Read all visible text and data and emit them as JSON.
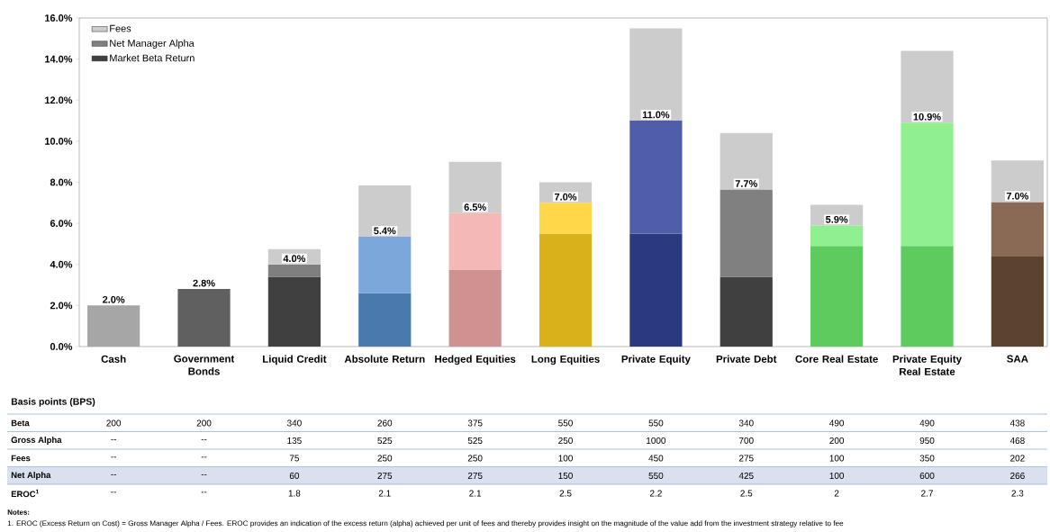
{
  "chart_data": {
    "type": "bar",
    "stacked": true,
    "legend": "top left",
    "categories": [
      "Cash",
      "Government Bonds",
      "Liquid Credit",
      "Absolute Return",
      "Hedged Equities",
      "Long Equities",
      "Private Equity",
      "Private Debt",
      "Core Real Estate",
      "Private Equity Real Estate",
      "SAA"
    ],
    "ylim": [
      0,
      16
    ],
    "yticks": [
      {
        "value": 0,
        "label": "0.0%"
      },
      {
        "value": 2,
        "label": "2.0%"
      },
      {
        "value": 4,
        "label": "4.0%"
      },
      {
        "value": 6,
        "label": "6.0%"
      },
      {
        "value": 8,
        "label": "8.0%"
      },
      {
        "value": 10,
        "label": "10.0%"
      },
      {
        "value": 12,
        "label": "12.0%"
      },
      {
        "value": 14,
        "label": "14.0%"
      },
      {
        "value": 16,
        "label": "16.0%"
      }
    ],
    "series": [
      {
        "name": "Market Beta Return",
        "color": "#404040",
        "colors": [
          "#a6a6a6",
          "#606060",
          "#404040",
          "#4a79ad",
          "#d09290",
          "#d9b11a",
          "#2a3a80",
          "#404040",
          "#5ecb5e",
          "#5ecb5e",
          "#5c4330"
        ],
        "values": [
          2.0,
          2.8,
          3.4,
          2.6,
          3.75,
          5.5,
          5.5,
          3.4,
          4.9,
          4.9,
          4.38
        ]
      },
      {
        "name": "Net Manager Alpha",
        "color": "#808080",
        "colors": [
          "#bfbfbf",
          "#808080",
          "#7f7f7f",
          "#7ba7da",
          "#f4b8b6",
          "#ffd84a",
          "#4f5ea8",
          "#808080",
          "#8ef08e",
          "#8ef08e",
          "#8a6a55"
        ],
        "values": [
          null,
          null,
          0.6,
          2.75,
          2.75,
          1.5,
          5.5,
          4.25,
          1.0,
          6.0,
          2.66
        ]
      },
      {
        "name": "Fees",
        "color": "#cccccc",
        "values": [
          null,
          null,
          0.75,
          2.5,
          2.5,
          1.0,
          4.5,
          2.75,
          1.0,
          3.5,
          2.02
        ]
      }
    ],
    "annotations": [
      "Basis points (BPS)",
      "Beta",
      "200",
      "200",
      "340",
      "260",
      "375",
      "550",
      "550",
      "340",
      "490",
      "490",
      "438",
      "Gross Alpha",
      "--",
      "--",
      "135",
      "525",
      "525",
      "250",
      "1000",
      "700",
      "200",
      "950",
      "468",
      "Fees",
      "--",
      "--",
      "75",
      "250",
      "250",
      "100",
      "450",
      "275",
      "100",
      "350",
      "202",
      "Net Alpha",
      "--",
      "--",
      "60",
      "275",
      "275",
      "150",
      "550",
      "425",
      "100",
      "600",
      "266",
      "EROC$^{1}$",
      "--",
      "--",
      "1.8",
      "2.1",
      "2.1",
      "2.5",
      "2.2",
      "2.5",
      "2",
      "2.7",
      "2.3",
      "Notes:",
      "1.    EROC (Excess Return on Cost) = Gross Manager Alpha / Fees. EROC provides an indication of the excess return (alpha) achieved per unit of fees and thereby provides insight on the magnitude of the value add from the investment strategy relative to fee",
      {
        "text": "2.0%",
        "x": "Cash",
        "y": 2.0
      },
      {
        "text": "2.8%",
        "x": "Government Bonds",
        "y": 2.8
      },
      {
        "text": "4.0%",
        "x": "Liquid Credit",
        "y": 4.0
      },
      {
        "text": "5.4%",
        "x": "Absolute Return",
        "y": 5.35
      },
      {
        "text": "6.5%",
        "x": "Hedged Equities",
        "y": 6.5
      },
      {
        "text": "7.0%",
        "x": "Long Equities",
        "y": 7.0
      },
      {
        "text": "11.0%",
        "x": "Private Equity",
        "y": 11.0
      },
      {
        "text": "7.7%",
        "x": "Private Debt",
        "y": 7.65
      },
      {
        "text": "5.9%",
        "x": "Core Real Estate",
        "y": 5.9
      },
      {
        "text": "10.9%",
        "x": "Private Equity Real Estate",
        "y": 10.9
      },
      {
        "text": "7.0%",
        "x": "SAA",
        "y": 7.04
      }
    ]
  }
}
